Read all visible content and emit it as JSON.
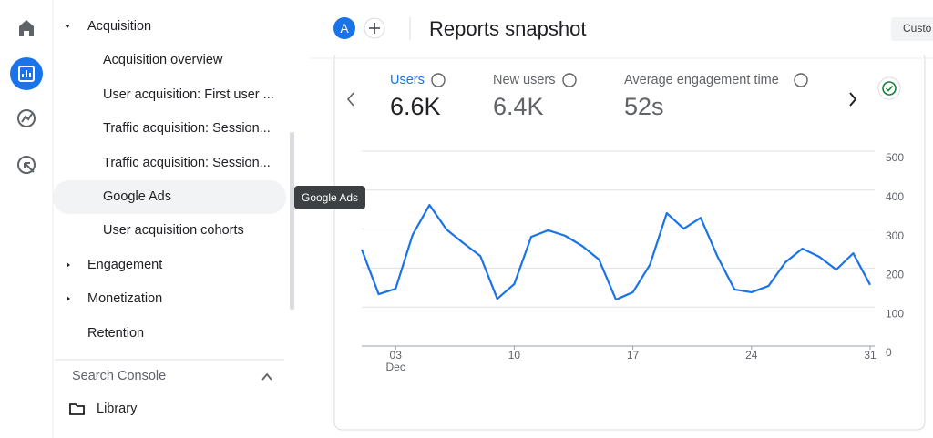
{
  "sidebar": {
    "sections": [
      {
        "label": "Acquisition",
        "items": [
          "Acquisition overview",
          "User acquisition: First user ...",
          "Traffic acquisition: Session...",
          "Traffic acquisition: Session...",
          "Google Ads",
          "User acquisition cohorts"
        ]
      },
      {
        "label": "Engagement"
      },
      {
        "label": "Monetization"
      },
      {
        "label": "Retention"
      }
    ],
    "group": "Search Console",
    "library": "Library"
  },
  "tooltip": "Google Ads",
  "header": {
    "avatar": "A",
    "title": "Reports snapshot",
    "button": "Custo"
  },
  "metrics": [
    {
      "label": "Users",
      "value": "6.6K"
    },
    {
      "label": "New users",
      "value": "6.4K"
    },
    {
      "label": "Average engagement time",
      "value": "52s"
    }
  ],
  "chart_data": {
    "type": "line",
    "color": "#1a73e8",
    "categories": [
      null,
      null,
      "03",
      null,
      null,
      null,
      null,
      null,
      null,
      "10",
      null,
      null,
      null,
      null,
      null,
      null,
      "17",
      null,
      null,
      null,
      null,
      null,
      null,
      "24",
      null,
      null,
      null,
      null,
      null,
      null,
      "31"
    ],
    "x_group_label": "Dec",
    "values": [
      248,
      133,
      147,
      285,
      362,
      299,
      264,
      231,
      121,
      159,
      280,
      297,
      283,
      257,
      222,
      119,
      138,
      208,
      341,
      301,
      329,
      229,
      145,
      138,
      154,
      215,
      250,
      229,
      196,
      238,
      157
    ],
    "ylim": [
      0,
      500
    ],
    "yticks": [
      0,
      100,
      200,
      300,
      400,
      500
    ],
    "grid": true
  }
}
